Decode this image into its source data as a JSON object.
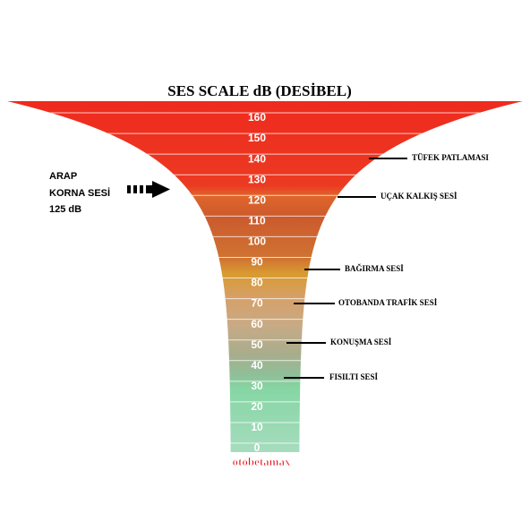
{
  "title": "SES SCALE  dB (DESİBEL)",
  "scale": [
    160,
    150,
    140,
    130,
    120,
    110,
    100,
    90,
    80,
    70,
    60,
    50,
    40,
    30,
    20,
    10,
    0
  ],
  "annotations": [
    "TÜFEK PATLAMASI",
    "UÇAK KALKIŞ SESİ",
    "BAĞIRMA SESİ",
    "OTOBANDA TRAFİK SESİ",
    "KONUŞMA SESİ",
    "FISILTI SESİ"
  ],
  "callout": [
    "ARAP",
    "KORNA SESİ",
    "125 dB"
  ],
  "watermark": "otobetamax"
}
